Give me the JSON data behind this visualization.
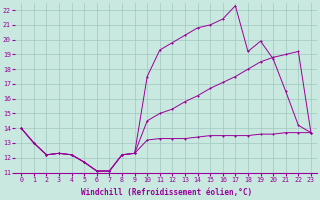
{
  "background_color": "#c8e8e0",
  "grid_color": "#a0c8c0",
  "line_color": "#990099",
  "marker_color": "#990099",
  "xlabel": "Windchill (Refroidissement éolien,°C)",
  "xlim": [
    -0.5,
    23.5
  ],
  "ylim": [
    11,
    22.5
  ],
  "xticks": [
    0,
    1,
    2,
    3,
    4,
    5,
    6,
    7,
    8,
    9,
    10,
    11,
    12,
    13,
    14,
    15,
    16,
    17,
    18,
    19,
    20,
    21,
    22,
    23
  ],
  "yticks": [
    11,
    12,
    13,
    14,
    15,
    16,
    17,
    18,
    19,
    20,
    21,
    22
  ],
  "series": [
    [
      14.0,
      13.0,
      12.2,
      12.3,
      12.2,
      11.7,
      11.1,
      11.1,
      12.2,
      12.3,
      17.5,
      19.3,
      19.8,
      20.3,
      20.8,
      21.0,
      21.4,
      22.3,
      19.2,
      19.9,
      18.7,
      16.5,
      14.2,
      13.7
    ],
    [
      14.0,
      13.0,
      12.2,
      12.3,
      12.2,
      11.7,
      11.1,
      11.1,
      12.2,
      12.3,
      14.5,
      15.0,
      15.3,
      15.8,
      16.2,
      16.7,
      17.1,
      17.5,
      18.0,
      18.5,
      18.8,
      19.0,
      19.2,
      13.7
    ],
    [
      14.0,
      13.0,
      12.2,
      12.3,
      12.2,
      11.7,
      11.1,
      11.1,
      12.2,
      12.3,
      13.2,
      13.3,
      13.3,
      13.3,
      13.4,
      13.5,
      13.5,
      13.5,
      13.5,
      13.6,
      13.6,
      13.7,
      13.7,
      13.7
    ]
  ],
  "xlabel_fontsize": 5.5,
  "tick_fontsize": 4.8,
  "linewidth": 0.7,
  "markersize": 2.0
}
